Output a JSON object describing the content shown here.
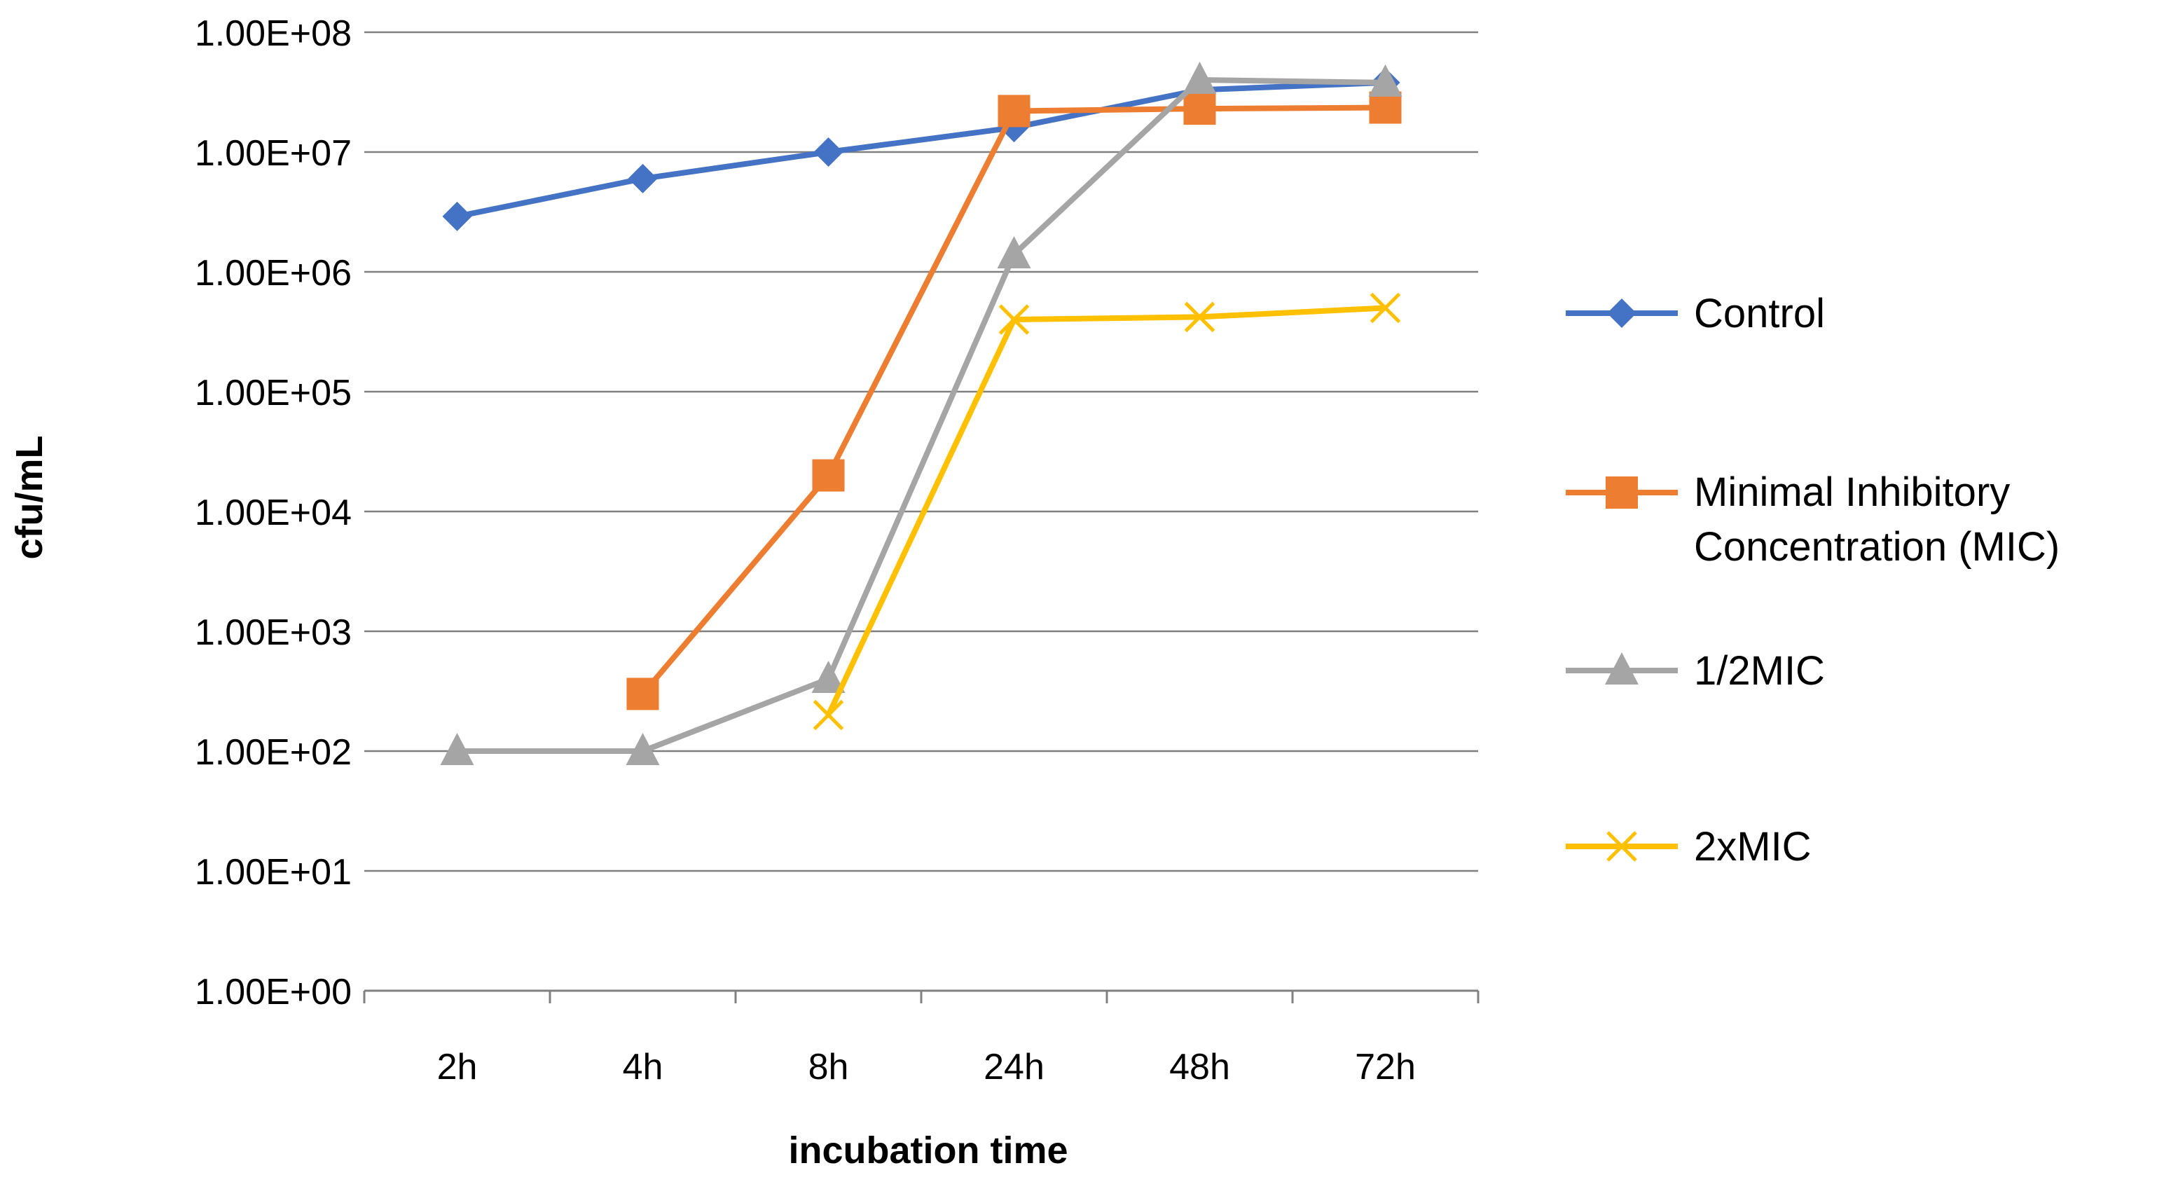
{
  "chart_data": {
    "type": "line",
    "title": "",
    "xlabel": "incubation time",
    "ylabel": "cfu/mL",
    "y_scale": "log10",
    "ylim": [
      1,
      100000000
    ],
    "y_ticks": [
      1,
      10,
      100,
      1000,
      10000,
      100000,
      1000000,
      10000000,
      100000000
    ],
    "y_tick_labels": [
      "1.00E+00",
      "1.00E+01",
      "1.00E+02",
      "1.00E+03",
      "1.00E+04",
      "1.00E+05",
      "1.00E+06",
      "1.00E+07",
      "1.00E+08"
    ],
    "categories": [
      "2h",
      "4h",
      "8h",
      "24h",
      "48h",
      "72h"
    ],
    "grid": true,
    "legend_position": "right",
    "series": [
      {
        "name": "Control",
        "color": "#4472C4",
        "marker": "diamond",
        "values": [
          2900000,
          6000000,
          10000000,
          16000000,
          33000000,
          38000000
        ]
      },
      {
        "name": "Minimal Inhibitory Concentration (MIC)",
        "color": "#ED7D31",
        "marker": "square",
        "values": [
          null,
          300,
          20000,
          22000000,
          23000000,
          23500000
        ]
      },
      {
        "name": "1/2MIC",
        "color": "#A5A5A5",
        "marker": "triangle",
        "values": [
          100,
          100,
          400,
          1400000,
          40000000,
          38000000
        ]
      },
      {
        "name": "2xMIC",
        "color": "#FFC000",
        "marker": "x",
        "values": [
          null,
          null,
          200,
          400000,
          420000,
          500000
        ]
      }
    ]
  }
}
